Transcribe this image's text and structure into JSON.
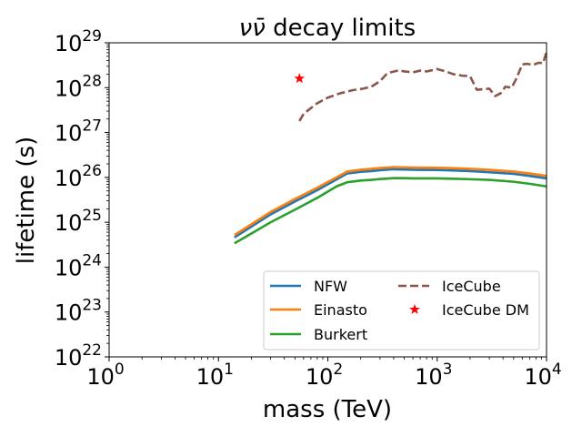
{
  "chart_data": {
    "type": "line",
    "title": "νν̄ decay limits",
    "title_main": "νν̄",
    "title_rest": " decay limits",
    "xlabel": "mass (TeV)",
    "ylabel": "lifetime (s)",
    "xscale": "log",
    "yscale": "log",
    "xlim": [
      1,
      10000
    ],
    "ylim": [
      1e+22,
      1e+29
    ],
    "x_ticks": [
      {
        "value": 1,
        "base": "10",
        "exp": "0"
      },
      {
        "value": 10,
        "base": "10",
        "exp": "1"
      },
      {
        "value": 100,
        "base": "10",
        "exp": "2"
      },
      {
        "value": 1000,
        "base": "10",
        "exp": "3"
      },
      {
        "value": 10000,
        "base": "10",
        "exp": "4"
      }
    ],
    "y_ticks": [
      {
        "value": 1e+22,
        "base": "10",
        "exp": "22"
      },
      {
        "value": 1e+23,
        "base": "10",
        "exp": "23"
      },
      {
        "value": 1e+24,
        "base": "10",
        "exp": "24"
      },
      {
        "value": 1e+25,
        "base": "10",
        "exp": "25"
      },
      {
        "value": 1e+26,
        "base": "10",
        "exp": "26"
      },
      {
        "value": 1e+27,
        "base": "10",
        "exp": "27"
      },
      {
        "value": 1e+28,
        "base": "10",
        "exp": "28"
      },
      {
        "value": 1e+29,
        "base": "10",
        "exp": "29"
      }
    ],
    "legend_location": "lower-right",
    "series": [
      {
        "name": "NFW",
        "color": "#1f77b4",
        "style": "solid",
        "marker": "none",
        "x": [
          14,
          20,
          30,
          50,
          80,
          120,
          150,
          200,
          250,
          300,
          400,
          500,
          600,
          700,
          1000,
          1500,
          2000,
          3000,
          5000,
          7000,
          10000
        ],
        "y": [
          4.6e+24,
          8e+24,
          1.5e+25,
          2.9e+25,
          5.2e+25,
          9e+25,
          1.22e+26,
          1.33e+26,
          1.38e+26,
          1.45e+26,
          1.52e+26,
          1.5e+26,
          1.48e+26,
          1.47e+26,
          1.46e+26,
          1.42e+26,
          1.38e+26,
          1.3e+26,
          1.2e+26,
          1.08e+26,
          9.5e+25
        ]
      },
      {
        "name": "Einasto",
        "color": "#ff7f0e",
        "style": "solid",
        "marker": "none",
        "x": [
          14,
          20,
          30,
          50,
          80,
          120,
          150,
          200,
          250,
          300,
          400,
          500,
          600,
          700,
          1000,
          1500,
          2000,
          3000,
          5000,
          7000,
          10000
        ],
        "y": [
          5.2e+24,
          9e+24,
          1.7e+25,
          3.3e+25,
          5.9e+25,
          1e+26,
          1.35e+26,
          1.48e+26,
          1.55e+26,
          1.62e+26,
          1.7e+26,
          1.68e+26,
          1.66e+26,
          1.65e+26,
          1.64e+26,
          1.6e+26,
          1.55e+26,
          1.47e+26,
          1.35e+26,
          1.22e+26,
          1.08e+26
        ]
      },
      {
        "name": "Burkert",
        "color": "#2ca02c",
        "style": "solid",
        "marker": "none",
        "x": [
          14,
          20,
          30,
          50,
          80,
          120,
          150,
          200,
          250,
          300,
          400,
          500,
          600,
          700,
          1000,
          1500,
          2000,
          3000,
          5000,
          7000,
          10000
        ],
        "y": [
          3.4e+24,
          5.6e+24,
          1e+25,
          1.9e+25,
          3.5e+25,
          6.3e+25,
          7.8e+25,
          8.5e+25,
          8.8e+25,
          9.2e+25,
          9.6e+25,
          9.6e+25,
          9.5e+25,
          9.5e+25,
          9.5e+25,
          9.3e+25,
          9.1e+25,
          8.8e+25,
          8e+25,
          7.2e+25,
          6.3e+25
        ]
      },
      {
        "name": "IceCube",
        "color": "#8c564b",
        "style": "dashed",
        "marker": "none",
        "x": [
          55,
          60,
          70,
          80,
          100,
          130,
          170,
          200,
          250,
          300,
          350,
          450,
          500,
          600,
          700,
          800,
          1000,
          1200,
          1400,
          1700,
          2000,
          2300,
          3000,
          3400,
          3800,
          4200,
          4800,
          5300,
          6000,
          6700,
          7500,
          8500,
          9300,
          10000
        ],
        "y": [
          1.8e+27,
          2.6e+27,
          3.5e+27,
          4.5e+27,
          6e+27,
          7.5e+27,
          8.8e+27,
          9.3e+27,
          1.05e+28,
          1.4e+28,
          2.1e+28,
          2.45e+28,
          2.3e+28,
          2.2e+28,
          2.4e+28,
          2.3e+28,
          2.6e+28,
          2.3e+28,
          2e+28,
          1.85e+28,
          1.8e+28,
          9e+27,
          9.5e+27,
          6.5e+27,
          7.5e+27,
          1.05e+28,
          1e+28,
          1.6e+28,
          3.3e+28,
          3.4e+28,
          3.2e+28,
          3.6e+28,
          3.5e+28,
          6.3e+28
        ]
      },
      {
        "name": "IceCube DM",
        "color": "#ff0000",
        "style": "none",
        "marker": "star",
        "x": [
          55
        ],
        "y": [
          1.6e+28
        ]
      }
    ]
  }
}
